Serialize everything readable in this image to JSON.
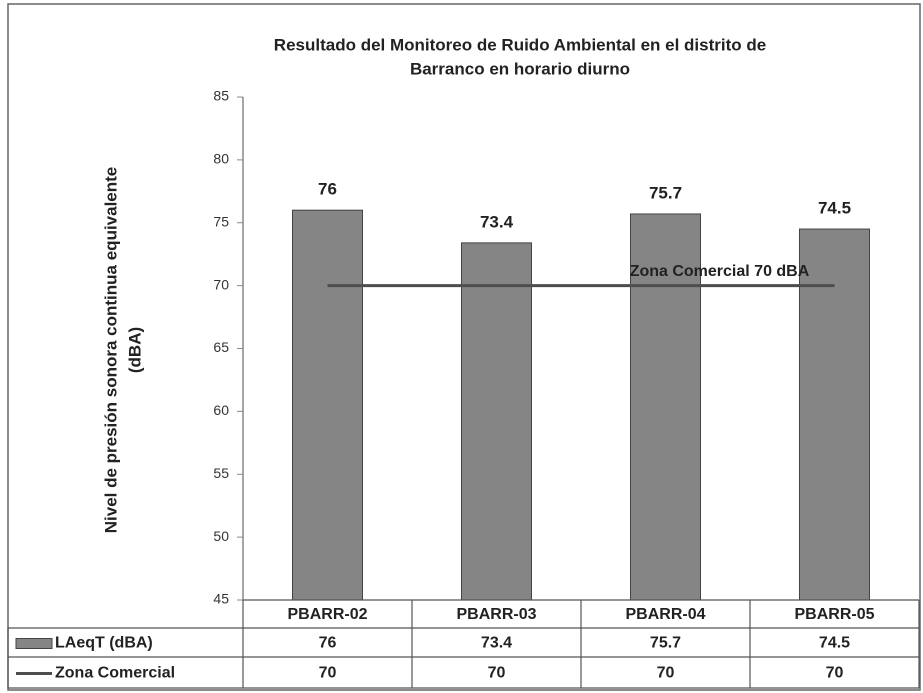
{
  "chart_data": {
    "type": "bar",
    "title": [
      "Resultado del Monitoreo de Ruido Ambiental  en el distrito de",
      "Barranco en horario diurno"
    ],
    "y_label": [
      "Nivel de presión sonora continua equivalente",
      "(dBA)"
    ],
    "categories": [
      "PBARR-02",
      "PBARR-03",
      "PBARR-04",
      "PBARR-05"
    ],
    "series": [
      {
        "name": "LAeqT (dBA)",
        "type": "bar",
        "color": "#858585",
        "values": [
          76,
          73.4,
          75.7,
          74.5
        ]
      },
      {
        "name": "Zona Comercial",
        "type": "line",
        "color": "#4d4d4d",
        "values": [
          70,
          70,
          70,
          70
        ]
      }
    ],
    "annotation": "Zona Comercial 70 dBA",
    "ylim": [
      45,
      85
    ],
    "yticks": [
      45,
      50,
      55,
      60,
      65,
      70,
      75,
      80,
      85
    ],
    "grid": false,
    "legend": "table"
  }
}
